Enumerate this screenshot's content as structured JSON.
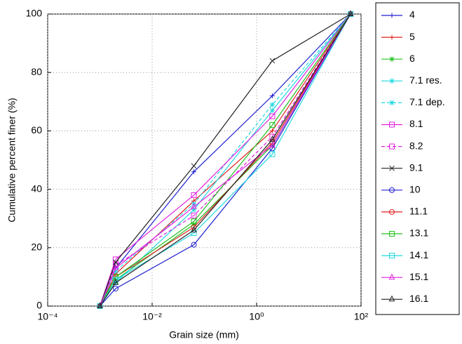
{
  "chart_data": {
    "type": "line",
    "xlabel": "Grain size (mm)",
    "ylabel": "Cumulative percent finer (%)",
    "xscale": "log",
    "grid": true,
    "legend": "outside-right",
    "x": [
      0.001,
      0.002,
      0.063,
      2,
      63
    ],
    "xlim": [
      0.0001,
      100
    ],
    "xticks": [
      {
        "value": 0.0001,
        "label": "10⁻⁴"
      },
      {
        "value": 0.01,
        "label": "10⁻²"
      },
      {
        "value": 1,
        "label": "10⁰"
      },
      {
        "value": 100,
        "label": "10²"
      }
    ],
    "ylim": [
      0,
      100
    ],
    "yticks": [
      0,
      20,
      40,
      60,
      80,
      100
    ],
    "series": [
      {
        "name": "4",
        "color": "#2020d0",
        "marker": "+",
        "dashed": false,
        "values": [
          0,
          13,
          46,
          72,
          100
        ]
      },
      {
        "name": "5",
        "color": "#e02020",
        "marker": "+",
        "dashed": false,
        "values": [
          0,
          11,
          36,
          60,
          100
        ]
      },
      {
        "name": "6",
        "color": "#20c020",
        "marker": "*",
        "dashed": false,
        "values": [
          0,
          9,
          28,
          55,
          100
        ]
      },
      {
        "name": "7.1 res.",
        "color": "#20d8e0",
        "marker": "*",
        "dashed": false,
        "values": [
          0,
          8,
          33,
          67,
          100
        ]
      },
      {
        "name": "7.1 dep.",
        "color": "#20d8e0",
        "marker": "*",
        "dashed": true,
        "values": [
          0,
          12,
          35,
          69,
          100
        ]
      },
      {
        "name": "8.1",
        "color": "#e020e0",
        "marker": "s",
        "dashed": false,
        "values": [
          0,
          16,
          38,
          65,
          100
        ]
      },
      {
        "name": "8.2",
        "color": "#e020e0",
        "marker": "s",
        "dashed": true,
        "values": [
          0,
          14,
          31,
          58,
          100
        ]
      },
      {
        "name": "9.1",
        "color": "#202020",
        "marker": "x",
        "dashed": false,
        "values": [
          0,
          15,
          48,
          84,
          100
        ]
      },
      {
        "name": "10",
        "color": "#2020d0",
        "marker": "o",
        "dashed": false,
        "values": [
          0,
          6,
          21,
          54,
          100
        ]
      },
      {
        "name": "11.1",
        "color": "#e02020",
        "marker": "o",
        "dashed": false,
        "values": [
          0,
          10,
          27,
          56,
          100
        ]
      },
      {
        "name": "13.1",
        "color": "#20c020",
        "marker": "s",
        "dashed": false,
        "values": [
          0,
          10,
          29,
          62,
          100
        ]
      },
      {
        "name": "14.1",
        "color": "#20d8e0",
        "marker": "s",
        "dashed": false,
        "values": [
          0,
          9,
          25,
          52,
          100
        ]
      },
      {
        "name": "15.1",
        "color": "#e020e0",
        "marker": "^",
        "dashed": false,
        "values": [
          0,
          13,
          34,
          55,
          100
        ]
      },
      {
        "name": "16.1",
        "color": "#202020",
        "marker": "^",
        "dashed": false,
        "values": [
          0,
          8,
          26,
          57,
          100
        ]
      }
    ]
  }
}
